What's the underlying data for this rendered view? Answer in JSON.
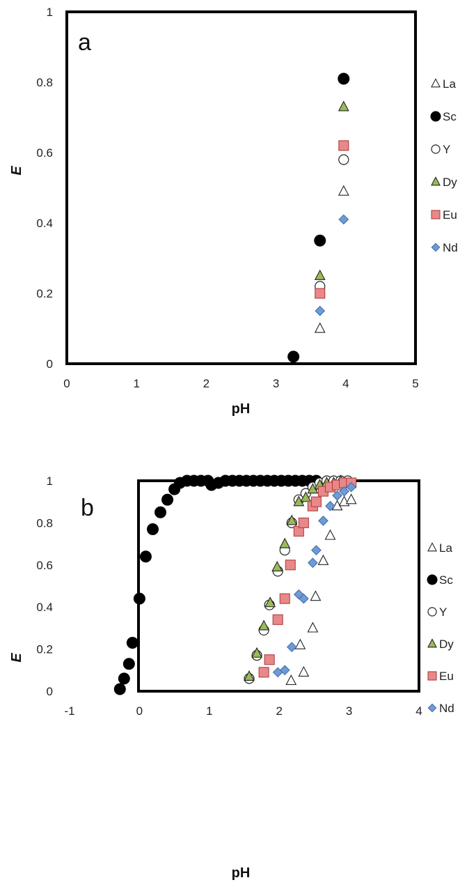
{
  "colors": {
    "La": "#ffffff",
    "Sc": "#000000",
    "Y": "#ffffff",
    "Dy": "#9bbb59",
    "Eu": "#e8888a",
    "Nd": "#6f9ad4"
  },
  "markers": {
    "La": "triangle-open",
    "Sc": "circle-filled",
    "Y": "circle-open",
    "Dy": "triangle-filled",
    "Eu": "square-filled",
    "Nd": "diamond-filled"
  },
  "chart_data": [
    {
      "type": "scatter",
      "panel_label": "a",
      "xlabel": "pH",
      "ylabel": "E",
      "xlim": [
        0,
        5
      ],
      "ylim": [
        0,
        1
      ],
      "xticks": [
        "0",
        "1",
        "2",
        "3",
        "4",
        "5"
      ],
      "yticks": [
        "0",
        "0.2",
        "0.4",
        "0.6",
        "0.8",
        "1"
      ],
      "legend_position": "right",
      "series": [
        {
          "name": "La",
          "x": [
            3.63,
            3.97
          ],
          "y": [
            0.1,
            0.49
          ]
        },
        {
          "name": "Sc",
          "x": [
            3.25,
            3.63,
            3.97
          ],
          "y": [
            0.02,
            0.35,
            0.81
          ]
        },
        {
          "name": "Y",
          "x": [
            3.63,
            3.97
          ],
          "y": [
            0.22,
            0.58
          ]
        },
        {
          "name": "Dy",
          "x": [
            3.63,
            3.97
          ],
          "y": [
            0.25,
            0.73
          ]
        },
        {
          "name": "Eu",
          "x": [
            3.63,
            3.97
          ],
          "y": [
            0.2,
            0.62
          ]
        },
        {
          "name": "Nd",
          "x": [
            3.63,
            3.97
          ],
          "y": [
            0.15,
            0.41
          ]
        }
      ]
    },
    {
      "type": "scatter",
      "panel_label": "b",
      "xlabel": "pH",
      "ylabel": "E",
      "xlim": [
        -1,
        4
      ],
      "ylim": [
        0,
        1
      ],
      "xticks": [
        "-1",
        "0",
        "1",
        "2",
        "3",
        "4"
      ],
      "yticks": [
        "0",
        "0.2",
        "0.4",
        "0.6",
        "0.8",
        "1"
      ],
      "legend_position": "right",
      "series": [
        {
          "name": "La",
          "x": [
            2.17,
            2.35,
            2.3,
            2.48,
            2.52,
            2.63,
            2.73,
            2.83,
            2.93,
            3.03
          ],
          "y": [
            0.05,
            0.09,
            0.22,
            0.3,
            0.45,
            0.62,
            0.74,
            0.88,
            0.9,
            0.91
          ]
        },
        {
          "name": "Sc",
          "x": [
            -0.28,
            -0.22,
            -0.15,
            -0.1,
            0.0,
            0.09,
            0.19,
            0.3,
            0.4,
            0.5,
            0.58,
            0.68,
            0.78,
            0.88,
            0.98,
            1.03,
            1.13,
            1.23,
            1.33,
            1.43,
            1.53,
            1.63,
            1.73,
            1.83,
            1.93,
            2.03,
            2.13,
            2.23,
            2.33,
            2.43,
            2.53
          ],
          "y": [
            0.01,
            0.06,
            0.13,
            0.23,
            0.44,
            0.64,
            0.77,
            0.85,
            0.91,
            0.96,
            0.99,
            1.0,
            1.0,
            1.0,
            1.0,
            0.98,
            0.99,
            1.0,
            1.0,
            1.0,
            1.0,
            1.0,
            1.0,
            1.0,
            1.0,
            1.0,
            1.0,
            1.0,
            1.0,
            1.0,
            1.0
          ]
        },
        {
          "name": "Y",
          "x": [
            1.57,
            1.68,
            1.78,
            1.86,
            1.98,
            2.08,
            2.18,
            2.28,
            2.38,
            2.48,
            2.58,
            2.68,
            2.78,
            2.88,
            2.98
          ],
          "y": [
            0.06,
            0.17,
            0.29,
            0.41,
            0.57,
            0.67,
            0.8,
            0.91,
            0.94,
            0.97,
            0.99,
            1.0,
            1.0,
            1.0,
            1.0
          ]
        },
        {
          "name": "Dy",
          "x": [
            1.57,
            1.68,
            1.78,
            1.87,
            1.97,
            2.08,
            2.18,
            2.28,
            2.38,
            2.48,
            2.58,
            2.68,
            2.78,
            2.88
          ],
          "y": [
            0.07,
            0.18,
            0.31,
            0.42,
            0.59,
            0.7,
            0.81,
            0.9,
            0.92,
            0.96,
            0.98,
            0.99,
            0.99,
            1.0
          ]
        },
        {
          "name": "Eu",
          "x": [
            1.78,
            1.86,
            1.98,
            2.08,
            2.16,
            2.28,
            2.35,
            2.48,
            2.53,
            2.63,
            2.73,
            2.83,
            2.93,
            3.03
          ],
          "y": [
            0.09,
            0.15,
            0.34,
            0.44,
            0.6,
            0.76,
            0.8,
            0.88,
            0.9,
            0.95,
            0.97,
            0.98,
            0.99,
            0.99
          ]
        },
        {
          "name": "Nd",
          "x": [
            1.98,
            2.08,
            2.18,
            2.28,
            2.35,
            2.48,
            2.53,
            2.63,
            2.73,
            2.83,
            2.93,
            3.03
          ],
          "y": [
            0.09,
            0.1,
            0.21,
            0.46,
            0.44,
            0.61,
            0.67,
            0.81,
            0.88,
            0.93,
            0.95,
            0.97
          ]
        }
      ]
    }
  ]
}
